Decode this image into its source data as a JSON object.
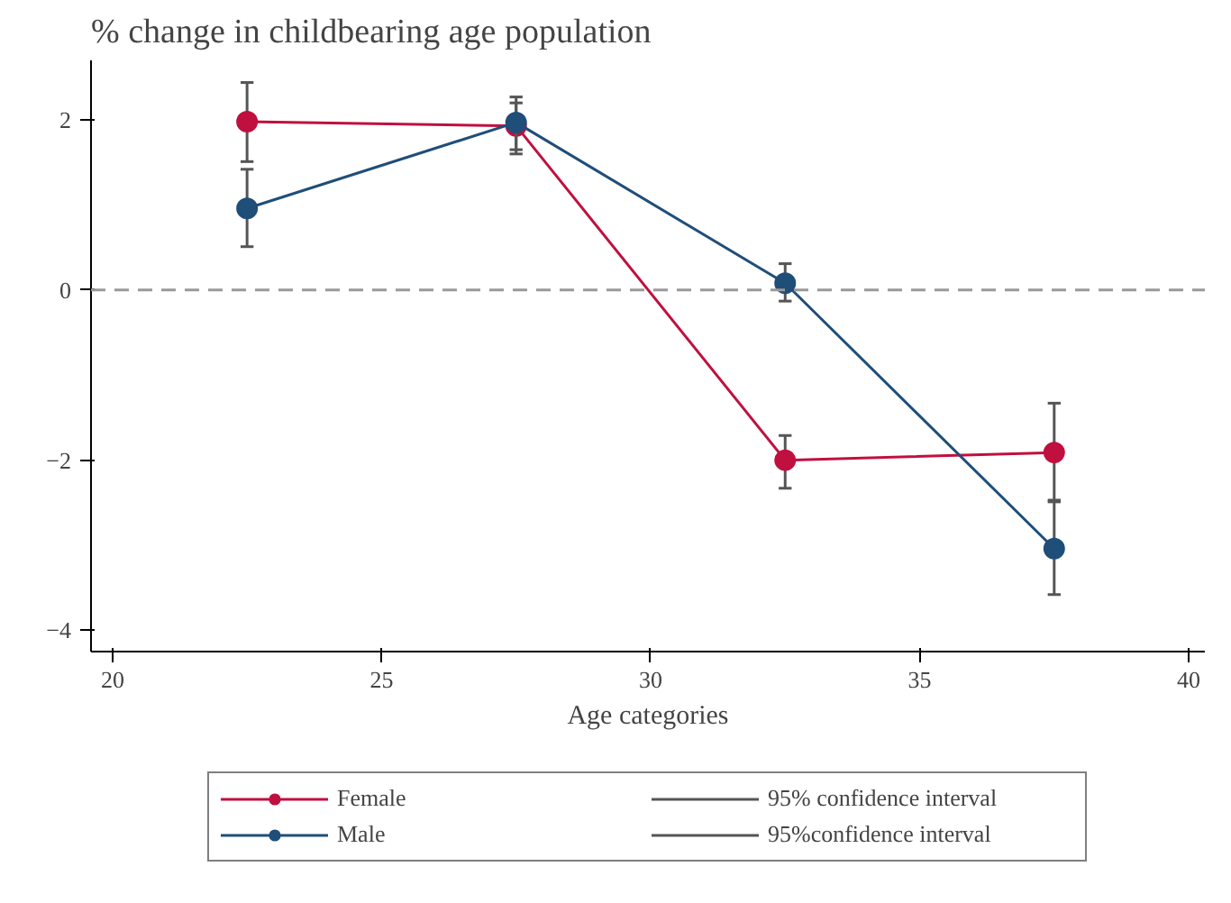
{
  "chart_data": {
    "type": "line",
    "title": "% change in childbearing age population",
    "xlabel": "Age categories",
    "x": [
      22.5,
      27.5,
      32.5,
      37.5
    ],
    "series": [
      {
        "name": "Female",
        "color": "#c0103f",
        "values": [
          1.98,
          1.93,
          -2.0,
          -1.91
        ],
        "errors": [
          [
            1.51,
            2.44
          ],
          [
            1.65,
            2.2
          ],
          [
            -2.33,
            -1.71
          ],
          [
            -2.47,
            -1.33
          ]
        ]
      },
      {
        "name": "Male",
        "color": "#1f4e79",
        "values": [
          0.96,
          1.97,
          0.08,
          -3.04
        ],
        "errors": [
          [
            0.51,
            1.42
          ],
          [
            1.6,
            2.27
          ],
          [
            -0.13,
            0.31
          ],
          [
            -3.58,
            -2.49
          ]
        ]
      }
    ],
    "annotations": [
      "95% confidence interval",
      "95%confidence interval"
    ],
    "xlim": [
      19.6,
      40.3
    ],
    "ylim": [
      -4.25,
      2.7
    ],
    "xticks": [
      20,
      25,
      30,
      35,
      40
    ],
    "yticks": [
      -4,
      -2,
      0,
      2
    ],
    "ref_lines": [
      {
        "axis": "y",
        "value": 0,
        "color": "#999999",
        "line_style": "dashed"
      }
    ],
    "grid": false,
    "legend": "bottom",
    "marker": "circle",
    "line_style": "solid"
  }
}
